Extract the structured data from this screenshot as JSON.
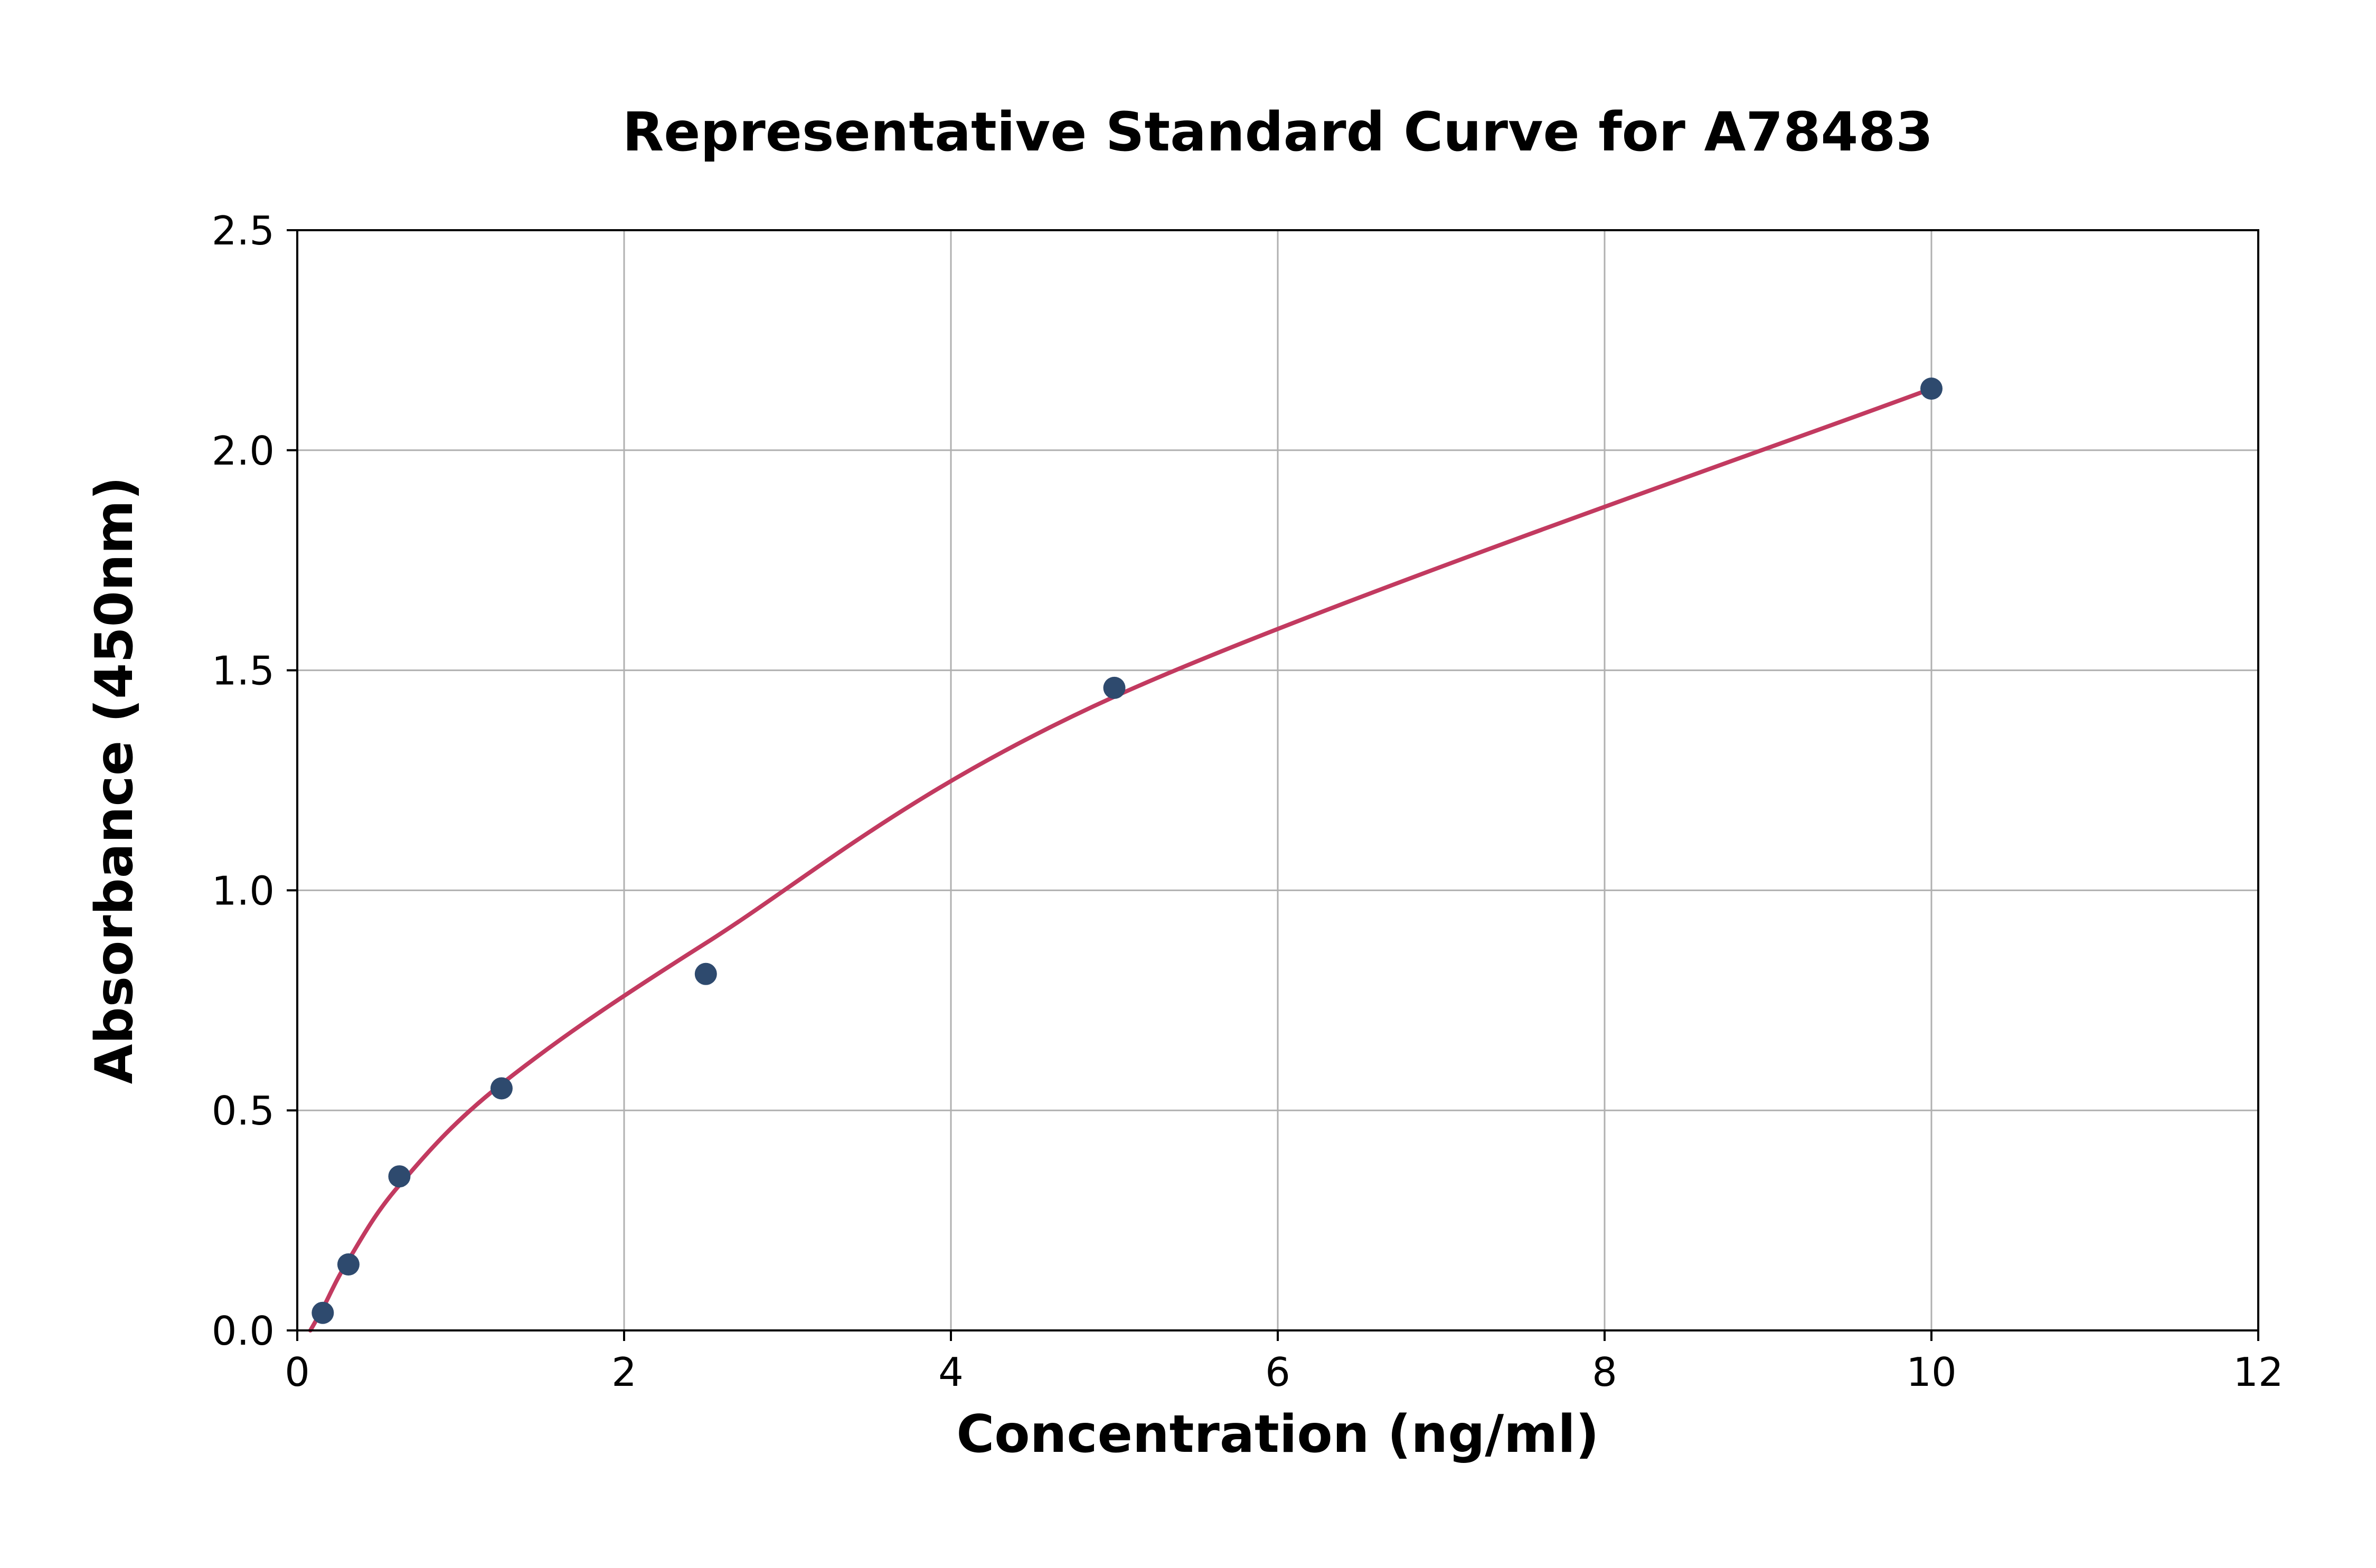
{
  "chart_data": {
    "type": "scatter",
    "title": "Representative Standard Curve for A78483",
    "xlabel": "Concentration (ng/ml)",
    "ylabel": "Absorbance (450nm)",
    "xlim": [
      0,
      12
    ],
    "ylim": [
      0,
      2.5
    ],
    "x_ticks": [
      0,
      2,
      4,
      6,
      8,
      10,
      12
    ],
    "x_tick_labels": [
      "0",
      "2",
      "4",
      "6",
      "8",
      "10",
      "12"
    ],
    "y_ticks": [
      0,
      0.5,
      1.0,
      1.5,
      2.0,
      2.5
    ],
    "y_tick_labels": [
      "0.0",
      "0.5",
      "1.0",
      "1.5",
      "2.0",
      "2.5"
    ],
    "grid": true,
    "legend": "none",
    "series": [
      {
        "name": "fit-curve",
        "type": "line",
        "x": [
          0.08,
          0.156,
          0.313,
          0.625,
          1.25,
          2.5,
          5,
          10
        ],
        "y": [
          0.0,
          0.05,
          0.16,
          0.33,
          0.56,
          0.88,
          1.44,
          2.14
        ]
      },
      {
        "name": "standard-points",
        "type": "scatter",
        "x": [
          0.156,
          0.313,
          0.625,
          1.25,
          2.5,
          5,
          10
        ],
        "y": [
          0.04,
          0.15,
          0.35,
          0.55,
          0.81,
          1.46,
          2.14
        ]
      }
    ],
    "colors": {
      "point": "#2e4a6e",
      "curve": "#c23a60",
      "grid": "#b0b0b0",
      "axis": "#000000",
      "background": "#ffffff"
    }
  }
}
